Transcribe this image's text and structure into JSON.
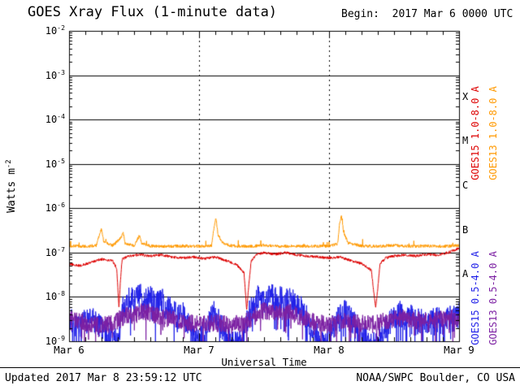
{
  "title": "GOES Xray Flux (1-minute data)",
  "begin_label": "Begin:  2017 Mar 6 0000 UTC",
  "footer": {
    "updated": "Updated 2017 Mar 8 23:59:12 UTC",
    "credit": "NOAA/SWPC Boulder, CO USA"
  },
  "chart_data": {
    "type": "line",
    "title": "GOES Xray Flux (1-minute data)",
    "begin": "2017 Mar 6 0000 UTC",
    "x_axis": {
      "label": "Universal Time",
      "range_hours": [
        0,
        72
      ],
      "major_ticks": [
        {
          "hour": 0,
          "label": "Mar 6"
        },
        {
          "hour": 24,
          "label": "Mar 7"
        },
        {
          "hour": 48,
          "label": "Mar 8"
        },
        {
          "hour": 72,
          "label": "Mar 9"
        }
      ],
      "minor_tick_interval_hours": 3,
      "dashed_gridline_hours": [
        24,
        48
      ]
    },
    "y_axis": {
      "label": "Watts m^-2",
      "label_base": "Watts m",
      "label_exp": "-2",
      "scale": "log10",
      "range_log10": [
        -9,
        -2
      ],
      "tick_exponents": [
        -2,
        -3,
        -4,
        -5,
        -6,
        -7,
        -8,
        -9
      ]
    },
    "flare_classes": [
      {
        "label": "X",
        "log_center": -3.5
      },
      {
        "label": "M",
        "log_center": -4.5
      },
      {
        "label": "C",
        "log_center": -5.5
      },
      {
        "label": "B",
        "log_center": -6.5
      },
      {
        "label": "A",
        "log_center": -7.5
      }
    ],
    "series_axis_labels": [
      {
        "text": "GOES15 1.0-8.0 A",
        "color": "#dd0000",
        "cx": 585,
        "cy": 165
      },
      {
        "text": "GOES13 1.0-8.0 A",
        "color": "#ff9900",
        "cx": 607,
        "cy": 165
      },
      {
        "text": "GOES15 0.5-4.0 A",
        "color": "#1f1fe8",
        "cx": 585,
        "cy": 368
      },
      {
        "text": "GOES13 0.5-4.0 A",
        "color": "#7b1fa2",
        "cx": 607,
        "cy": 368
      }
    ],
    "noise_seed": 7,
    "anchors_format": "[hours_since_begin, log10_flux_watts_m2]",
    "series": [
      {
        "name": "GOES15 0.5-4.0 A",
        "satellite": "GOES15",
        "band": "0.5-4.0 A",
        "color": "#1f1fe8",
        "noise_db": 0.3,
        "spike_prob": 0.1,
        "spike_db": 0.8,
        "spike_dir": -1,
        "anchors": [
          [
            0,
            -8.5
          ],
          [
            1,
            -8.65
          ],
          [
            2,
            -8.75
          ],
          [
            3,
            -8.55
          ],
          [
            4,
            -8.45
          ],
          [
            5,
            -8.6
          ],
          [
            6,
            -8.7
          ],
          [
            7,
            -8.8
          ],
          [
            8,
            -8.9
          ],
          [
            9,
            -9.05
          ],
          [
            9.5,
            -8.6
          ],
          [
            10,
            -8.25
          ],
          [
            11,
            -8.05
          ],
          [
            12,
            -8.1
          ],
          [
            13,
            -7.98
          ],
          [
            14,
            -8.1
          ],
          [
            15,
            -8.02
          ],
          [
            16,
            -8.2
          ],
          [
            17,
            -8.05
          ],
          [
            18,
            -8.3
          ],
          [
            19,
            -8.25
          ],
          [
            20,
            -8.5
          ],
          [
            21,
            -8.4
          ],
          [
            22,
            -8.6
          ],
          [
            23,
            -8.9
          ],
          [
            24,
            -9.05
          ],
          [
            25,
            -8.8
          ],
          [
            26,
            -8.5
          ],
          [
            27,
            -8.35
          ],
          [
            28,
            -8.6
          ],
          [
            29,
            -8.9
          ],
          [
            30,
            -9.0
          ],
          [
            31,
            -9.1
          ],
          [
            32,
            -8.95
          ],
          [
            33,
            -8.45
          ],
          [
            34,
            -8.2
          ],
          [
            35,
            -8.0
          ],
          [
            36,
            -8.1
          ],
          [
            37,
            -7.98
          ],
          [
            38,
            -8.05
          ],
          [
            39,
            -8.0
          ],
          [
            40,
            -8.1
          ],
          [
            41,
            -8.02
          ],
          [
            42,
            -8.2
          ],
          [
            43,
            -8.3
          ],
          [
            44,
            -8.5
          ],
          [
            45,
            -8.7
          ],
          [
            46,
            -8.95
          ],
          [
            47,
            -9.1
          ],
          [
            48,
            -8.9
          ],
          [
            49,
            -8.6
          ],
          [
            50,
            -8.45
          ],
          [
            51,
            -8.35
          ],
          [
            52,
            -8.5
          ],
          [
            53,
            -8.65
          ],
          [
            54,
            -8.8
          ],
          [
            55,
            -8.95
          ],
          [
            56,
            -9.05
          ],
          [
            57,
            -9.1
          ],
          [
            58,
            -8.8
          ],
          [
            59,
            -8.55
          ],
          [
            60,
            -8.45
          ],
          [
            61,
            -8.35
          ],
          [
            62,
            -8.5
          ],
          [
            63,
            -8.42
          ],
          [
            64,
            -8.6
          ],
          [
            65,
            -8.5
          ],
          [
            66,
            -8.65
          ],
          [
            67,
            -8.55
          ],
          [
            68,
            -8.5
          ],
          [
            69,
            -8.6
          ],
          [
            70,
            -8.45
          ],
          [
            71,
            -8.5
          ],
          [
            72,
            -8.4
          ]
        ]
      },
      {
        "name": "GOES13 0.5-4.0 A",
        "satellite": "GOES13",
        "band": "0.5-4.0 A",
        "color": "#7b1fa2",
        "noise_db": 0.2,
        "spike_prob": 0.06,
        "spike_db": 0.5,
        "spike_dir": -1,
        "anchors": [
          [
            0,
            -8.5
          ],
          [
            2,
            -8.55
          ],
          [
            4,
            -8.6
          ],
          [
            6,
            -8.62
          ],
          [
            8,
            -8.6
          ],
          [
            10,
            -8.45
          ],
          [
            12,
            -8.38
          ],
          [
            14,
            -8.32
          ],
          [
            16,
            -8.42
          ],
          [
            18,
            -8.48
          ],
          [
            20,
            -8.52
          ],
          [
            22,
            -8.58
          ],
          [
            24,
            -8.62
          ],
          [
            26,
            -8.58
          ],
          [
            28,
            -8.6
          ],
          [
            30,
            -8.62
          ],
          [
            32,
            -8.6
          ],
          [
            34,
            -8.45
          ],
          [
            36,
            -8.32
          ],
          [
            38,
            -8.36
          ],
          [
            40,
            -8.32
          ],
          [
            42,
            -8.42
          ],
          [
            44,
            -8.5
          ],
          [
            46,
            -8.58
          ],
          [
            48,
            -8.62
          ],
          [
            50,
            -8.56
          ],
          [
            52,
            -8.58
          ],
          [
            54,
            -8.6
          ],
          [
            56,
            -8.62
          ],
          [
            58,
            -8.55
          ],
          [
            60,
            -8.5
          ],
          [
            62,
            -8.46
          ],
          [
            64,
            -8.52
          ],
          [
            66,
            -8.56
          ],
          [
            68,
            -8.52
          ],
          [
            70,
            -8.46
          ],
          [
            72,
            -8.5
          ]
        ]
      },
      {
        "name": "GOES15 1.0-8.0 A",
        "satellite": "GOES15",
        "band": "1.0-8.0 A",
        "color": "#dd0000",
        "noise_db": 0.03,
        "spike_prob": 0,
        "spike_db": 0,
        "spike_dir": -1,
        "anchors": [
          [
            0,
            -7.25
          ],
          [
            2,
            -7.3
          ],
          [
            4,
            -7.22
          ],
          [
            6,
            -7.15
          ],
          [
            8,
            -7.18
          ],
          [
            8.8,
            -7.35
          ],
          [
            9.2,
            -8.25
          ],
          [
            9.5,
            -7.6
          ],
          [
            9.8,
            -7.15
          ],
          [
            11,
            -7.08
          ],
          [
            13,
            -7.05
          ],
          [
            15,
            -7.08
          ],
          [
            17,
            -7.05
          ],
          [
            19,
            -7.1
          ],
          [
            21,
            -7.12
          ],
          [
            23,
            -7.1
          ],
          [
            25,
            -7.14
          ],
          [
            27,
            -7.1
          ],
          [
            29,
            -7.18
          ],
          [
            31,
            -7.28
          ],
          [
            32.3,
            -7.45
          ],
          [
            32.8,
            -8.3
          ],
          [
            33.2,
            -7.7
          ],
          [
            33.6,
            -7.2
          ],
          [
            34.5,
            -7.05
          ],
          [
            36,
            -7.0
          ],
          [
            38,
            -7.04
          ],
          [
            40,
            -7.0
          ],
          [
            42,
            -7.05
          ],
          [
            44,
            -7.08
          ],
          [
            46,
            -7.1
          ],
          [
            48,
            -7.12
          ],
          [
            50,
            -7.1
          ],
          [
            52,
            -7.18
          ],
          [
            54,
            -7.25
          ],
          [
            55.8,
            -7.4
          ],
          [
            56.6,
            -8.25
          ],
          [
            57,
            -7.8
          ],
          [
            57.4,
            -7.25
          ],
          [
            58.5,
            -7.12
          ],
          [
            60,
            -7.08
          ],
          [
            62,
            -7.05
          ],
          [
            64,
            -7.08
          ],
          [
            66,
            -7.04
          ],
          [
            68,
            -7.06
          ],
          [
            70,
            -7.0
          ],
          [
            71.5,
            -6.93
          ],
          [
            72,
            -6.9
          ]
        ]
      },
      {
        "name": "GOES13 1.0-8.0 A",
        "satellite": "GOES13",
        "band": "1.0-8.0 A",
        "color": "#ff9900",
        "noise_db": 0.035,
        "spike_prob": 0.02,
        "spike_db": 0.12,
        "spike_dir": 1,
        "anchors": [
          [
            0,
            -6.85
          ],
          [
            3,
            -6.86
          ],
          [
            5,
            -6.84
          ],
          [
            5.7,
            -6.55
          ],
          [
            6,
            -6.45
          ],
          [
            6.4,
            -6.75
          ],
          [
            8,
            -6.85
          ],
          [
            9.7,
            -6.65
          ],
          [
            10,
            -6.55
          ],
          [
            10.3,
            -6.78
          ],
          [
            12,
            -6.85
          ],
          [
            13,
            -6.62
          ],
          [
            13.4,
            -6.8
          ],
          [
            15,
            -6.85
          ],
          [
            18,
            -6.86
          ],
          [
            21,
            -6.85
          ],
          [
            24,
            -6.86
          ],
          [
            26.3,
            -6.84
          ],
          [
            26.8,
            -6.4
          ],
          [
            27.1,
            -6.22
          ],
          [
            27.5,
            -6.6
          ],
          [
            28.3,
            -6.78
          ],
          [
            30,
            -6.85
          ],
          [
            33,
            -6.86
          ],
          [
            36,
            -6.84
          ],
          [
            39,
            -6.86
          ],
          [
            42,
            -6.85
          ],
          [
            45,
            -6.86
          ],
          [
            48,
            -6.85
          ],
          [
            49.6,
            -6.8
          ],
          [
            50,
            -6.3
          ],
          [
            50.3,
            -6.18
          ],
          [
            50.7,
            -6.55
          ],
          [
            51.5,
            -6.78
          ],
          [
            54,
            -6.85
          ],
          [
            57,
            -6.86
          ],
          [
            60,
            -6.84
          ],
          [
            63,
            -6.86
          ],
          [
            66,
            -6.85
          ],
          [
            69,
            -6.86
          ],
          [
            72,
            -6.84
          ]
        ]
      }
    ]
  }
}
